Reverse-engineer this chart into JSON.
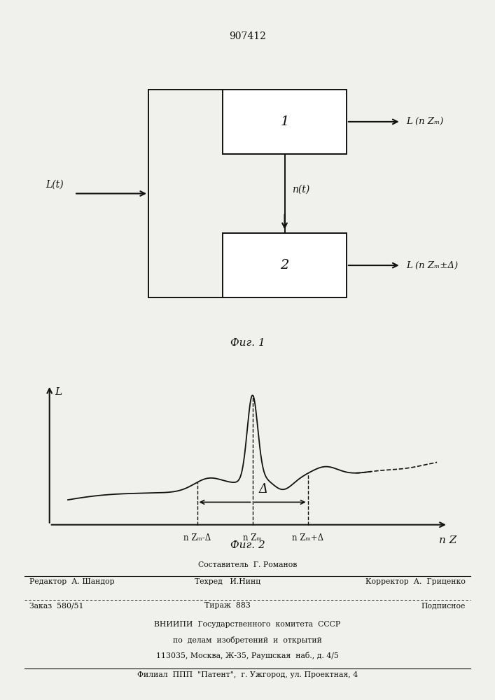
{
  "patent_number": "907412",
  "fig1_caption": "Фиг. 1",
  "fig2_caption": "Фиг. 2",
  "block1_label": "1",
  "block2_label": "2",
  "input_label": "L(t)",
  "nt_label": "n(t)",
  "output1_label": "L (n Zₘ)",
  "output2_label": "L (n Zₘ±Δ)",
  "axis_x_label": "n Z",
  "axis_y_label": "L",
  "delta_label": "Δ",
  "x_tick1": "n Zₘ-Δ",
  "x_tick2": "n Zₘ",
  "x_tick3": "n Zₘ+Δ",
  "footer_line1": "Составитель  Г. Романов",
  "footer_line2_left": "Редактор  А. Шандор",
  "footer_line2_mid": "Техред   И.Нинц",
  "footer_line2_right": "Корректор  А.  Гриценко",
  "footer_line3_left": "Заказ  580/51",
  "footer_line3_mid": "Тираж  883",
  "footer_line3_right": "Подписное",
  "footer_line4": "ВНИИПИ  Государственного  комитета  СССР",
  "footer_line5": "по  делам  изобретений  и  открытий",
  "footer_line6": "113035, Москва, Ж-35, Раушская  наб., д. 4/5",
  "footer_line7": "Филиал  ППП  \"Патент\",  г. Ужгород, ул. Проектная, 4",
  "bg_color": "#f0f0ec",
  "line_color": "#111111"
}
